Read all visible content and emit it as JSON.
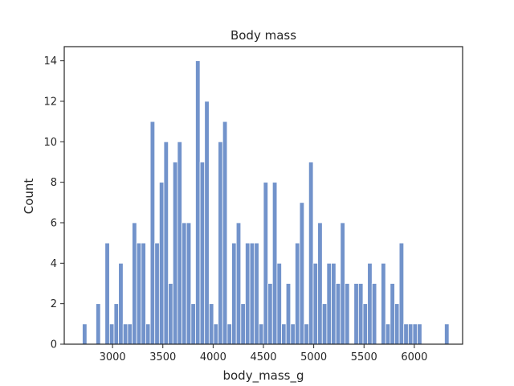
{
  "chart_data": {
    "type": "bar",
    "title": "Body mass",
    "xlabel": "body_mass_g",
    "ylabel": "Count",
    "xlim": [
      2520,
      6480
    ],
    "ylim": [
      0,
      14.7
    ],
    "bin_start": 2700,
    "bin_width": 45,
    "x_ticks": [
      3000,
      3500,
      4000,
      4500,
      5000,
      5500,
      6000
    ],
    "x_tick_labels": [
      "3000",
      "3500",
      "4000",
      "4500",
      "5000",
      "5500",
      "6000"
    ],
    "y_ticks": [
      0,
      2,
      4,
      6,
      8,
      10,
      12,
      14
    ],
    "y_tick_labels": [
      "0",
      "2",
      "4",
      "6",
      "8",
      "10",
      "12",
      "14"
    ],
    "bar_color": "#7293cb",
    "values": [
      1,
      0,
      0,
      2,
      0,
      5,
      1,
      2,
      4,
      1,
      1,
      6,
      5,
      5,
      1,
      11,
      5,
      8,
      10,
      3,
      9,
      10,
      6,
      6,
      2,
      14,
      9,
      12,
      2,
      1,
      10,
      11,
      1,
      5,
      6,
      2,
      5,
      5,
      5,
      1,
      8,
      3,
      8,
      4,
      1,
      3,
      1,
      5,
      7,
      1,
      9,
      4,
      6,
      2,
      4,
      4,
      3,
      6,
      3,
      0,
      3,
      3,
      2,
      4,
      3,
      0,
      4,
      1,
      3,
      2,
      5,
      1,
      1,
      1,
      1,
      0,
      0,
      0,
      0,
      0,
      1
    ]
  }
}
